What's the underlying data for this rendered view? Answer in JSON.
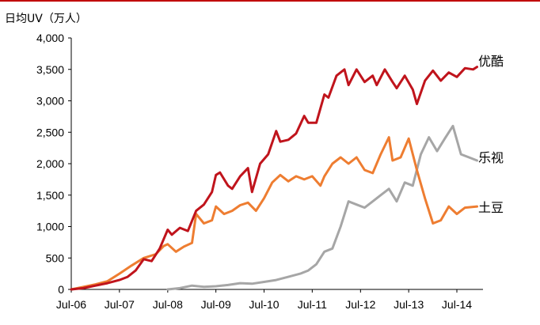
{
  "chart_data": {
    "type": "line",
    "ylabel": "日均UV（万人）",
    "ylim": [
      0,
      4000
    ],
    "yticks": [
      "0",
      "500",
      "1,000",
      "1,500",
      "2,000",
      "2,500",
      "3,000",
      "3,500",
      "4,000"
    ],
    "xticks": [
      "Jul-06",
      "Jul-07",
      "Jul-08",
      "Jul-09",
      "Jul-10",
      "Jul-11",
      "Jul-12",
      "Jul-13",
      "Jul-14"
    ],
    "grid": false,
    "legend": "inline-right",
    "series": [
      {
        "name": "优酷",
        "color": "#c0141c",
        "values": [
          [
            "2006-07-01",
            0
          ],
          [
            "2006-10-01",
            20
          ],
          [
            "2007-01-01",
            60
          ],
          [
            "2007-04-01",
            100
          ],
          [
            "2007-07-01",
            150
          ],
          [
            "2007-09-01",
            200
          ],
          [
            "2007-11-01",
            300
          ],
          [
            "2008-01-01",
            480
          ],
          [
            "2008-03-01",
            450
          ],
          [
            "2008-05-01",
            650
          ],
          [
            "2008-07-01",
            950
          ],
          [
            "2008-08-01",
            870
          ],
          [
            "2008-10-01",
            980
          ],
          [
            "2008-12-01",
            930
          ],
          [
            "2009-02-01",
            1250
          ],
          [
            "2009-04-01",
            1350
          ],
          [
            "2009-06-01",
            1550
          ],
          [
            "2009-07-01",
            1820
          ],
          [
            "2009-08-01",
            1860
          ],
          [
            "2009-10-01",
            1650
          ],
          [
            "2009-11-01",
            1600
          ],
          [
            "2010-01-01",
            1800
          ],
          [
            "2010-03-01",
            1930
          ],
          [
            "2010-04-01",
            1550
          ],
          [
            "2010-06-01",
            2000
          ],
          [
            "2010-08-01",
            2150
          ],
          [
            "2010-10-01",
            2520
          ],
          [
            "2010-11-01",
            2350
          ],
          [
            "2011-01-01",
            2380
          ],
          [
            "2011-03-01",
            2480
          ],
          [
            "2011-05-01",
            2760
          ],
          [
            "2011-06-01",
            2650
          ],
          [
            "2011-08-01",
            2650
          ],
          [
            "2011-10-01",
            3100
          ],
          [
            "2011-11-01",
            3050
          ],
          [
            "2012-01-01",
            3400
          ],
          [
            "2012-03-01",
            3500
          ],
          [
            "2012-04-01",
            3250
          ],
          [
            "2012-06-01",
            3500
          ],
          [
            "2012-08-01",
            3300
          ],
          [
            "2012-10-01",
            3400
          ],
          [
            "2012-11-01",
            3250
          ],
          [
            "2013-01-01",
            3500
          ],
          [
            "2013-03-01",
            3300
          ],
          [
            "2013-04-01",
            3200
          ],
          [
            "2013-06-01",
            3400
          ],
          [
            "2013-08-01",
            3180
          ],
          [
            "2013-09-01",
            2950
          ],
          [
            "2013-11-01",
            3320
          ],
          [
            "2014-01-01",
            3480
          ],
          [
            "2014-03-01",
            3320
          ],
          [
            "2014-05-01",
            3450
          ],
          [
            "2014-07-01",
            3380
          ],
          [
            "2014-09-01",
            3520
          ],
          [
            "2014-11-01",
            3500
          ],
          [
            "2014-12-01",
            3540
          ]
        ]
      },
      {
        "name": "土豆",
        "color": "#ee7d31",
        "values": [
          [
            "2006-07-01",
            0
          ],
          [
            "2006-10-01",
            40
          ],
          [
            "2007-01-01",
            80
          ],
          [
            "2007-04-01",
            130
          ],
          [
            "2007-07-01",
            250
          ],
          [
            "2007-10-01",
            380
          ],
          [
            "2008-01-01",
            500
          ],
          [
            "2008-04-01",
            560
          ],
          [
            "2008-06-01",
            690
          ],
          [
            "2008-07-01",
            720
          ],
          [
            "2008-09-01",
            600
          ],
          [
            "2008-11-01",
            680
          ],
          [
            "2009-01-01",
            740
          ],
          [
            "2009-02-01",
            1200
          ],
          [
            "2009-04-01",
            1050
          ],
          [
            "2009-06-01",
            1100
          ],
          [
            "2009-07-01",
            1320
          ],
          [
            "2009-09-01",
            1200
          ],
          [
            "2009-11-01",
            1250
          ],
          [
            "2010-01-01",
            1340
          ],
          [
            "2010-03-01",
            1380
          ],
          [
            "2010-05-01",
            1250
          ],
          [
            "2010-07-01",
            1450
          ],
          [
            "2010-09-01",
            1700
          ],
          [
            "2010-11-01",
            1820
          ],
          [
            "2011-01-01",
            1720
          ],
          [
            "2011-03-01",
            1800
          ],
          [
            "2011-05-01",
            1750
          ],
          [
            "2011-07-01",
            1800
          ],
          [
            "2011-09-01",
            1650
          ],
          [
            "2011-10-01",
            1800
          ],
          [
            "2011-12-01",
            2000
          ],
          [
            "2012-02-01",
            2100
          ],
          [
            "2012-04-01",
            2000
          ],
          [
            "2012-06-01",
            2100
          ],
          [
            "2012-08-01",
            1900
          ],
          [
            "2012-10-01",
            1850
          ],
          [
            "2012-12-01",
            2150
          ],
          [
            "2013-02-01",
            2420
          ],
          [
            "2013-03-01",
            2050
          ],
          [
            "2013-05-01",
            2100
          ],
          [
            "2013-07-01",
            2400
          ],
          [
            "2013-09-01",
            1900
          ],
          [
            "2013-11-01",
            1450
          ],
          [
            "2014-01-01",
            1050
          ],
          [
            "2014-03-01",
            1100
          ],
          [
            "2014-05-01",
            1320
          ],
          [
            "2014-07-01",
            1200
          ],
          [
            "2014-09-01",
            1300
          ],
          [
            "2014-12-01",
            1320
          ]
        ]
      },
      {
        "name": "乐视",
        "color": "#a6a6a6",
        "values": [
          [
            "2008-07-01",
            0
          ],
          [
            "2008-10-01",
            20
          ],
          [
            "2009-01-01",
            60
          ],
          [
            "2009-04-01",
            40
          ],
          [
            "2009-07-01",
            50
          ],
          [
            "2009-10-01",
            70
          ],
          [
            "2010-01-01",
            100
          ],
          [
            "2010-04-01",
            90
          ],
          [
            "2010-07-01",
            120
          ],
          [
            "2010-10-01",
            150
          ],
          [
            "2011-01-01",
            200
          ],
          [
            "2011-04-01",
            250
          ],
          [
            "2011-06-01",
            300
          ],
          [
            "2011-08-01",
            400
          ],
          [
            "2011-10-01",
            600
          ],
          [
            "2011-12-01",
            650
          ],
          [
            "2012-02-01",
            1000
          ],
          [
            "2012-04-01",
            1400
          ],
          [
            "2012-06-01",
            1350
          ],
          [
            "2012-08-01",
            1300
          ],
          [
            "2012-10-01",
            1400
          ],
          [
            "2012-12-01",
            1500
          ],
          [
            "2013-02-01",
            1600
          ],
          [
            "2013-04-01",
            1400
          ],
          [
            "2013-06-01",
            1700
          ],
          [
            "2013-08-01",
            1650
          ],
          [
            "2013-10-01",
            2150
          ],
          [
            "2013-12-01",
            2420
          ],
          [
            "2014-02-01",
            2200
          ],
          [
            "2014-04-01",
            2400
          ],
          [
            "2014-06-01",
            2600
          ],
          [
            "2014-08-01",
            2150
          ],
          [
            "2014-10-01",
            2100
          ],
          [
            "2014-12-01",
            2050
          ]
        ]
      }
    ]
  }
}
